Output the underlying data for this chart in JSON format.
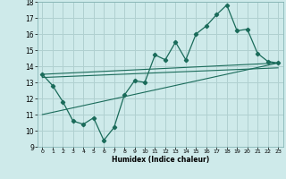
{
  "background_color": "#ceeaea",
  "grid_color": "#b0d0d0",
  "line_color": "#1a6b5a",
  "xlabel": "Humidex (Indice chaleur)",
  "xlim": [
    -0.5,
    23.5
  ],
  "ylim": [
    9,
    18
  ],
  "yticks": [
    9,
    10,
    11,
    12,
    13,
    14,
    15,
    16,
    17,
    18
  ],
  "xticks": [
    0,
    1,
    2,
    3,
    4,
    5,
    6,
    7,
    8,
    9,
    10,
    11,
    12,
    13,
    14,
    15,
    16,
    17,
    18,
    19,
    20,
    21,
    22,
    23
  ],
  "main_x": [
    0,
    1,
    2,
    3,
    4,
    5,
    6,
    7,
    8,
    9,
    10,
    11,
    12,
    13,
    14,
    15,
    16,
    17,
    18,
    19,
    20,
    21,
    22,
    23
  ],
  "main_y": [
    13.5,
    12.8,
    11.8,
    10.6,
    10.4,
    10.8,
    9.4,
    10.2,
    12.2,
    13.1,
    13.0,
    14.7,
    14.4,
    15.5,
    14.4,
    16.0,
    16.5,
    17.2,
    17.8,
    16.2,
    16.3,
    14.8,
    14.3,
    14.2
  ],
  "trend1_x": [
    0,
    23
  ],
  "trend1_y": [
    13.5,
    14.2
  ],
  "trend2_x": [
    0,
    23
  ],
  "trend2_y": [
    13.3,
    13.9
  ],
  "trend3_x": [
    0,
    23
  ],
  "trend3_y": [
    11.0,
    14.2
  ]
}
